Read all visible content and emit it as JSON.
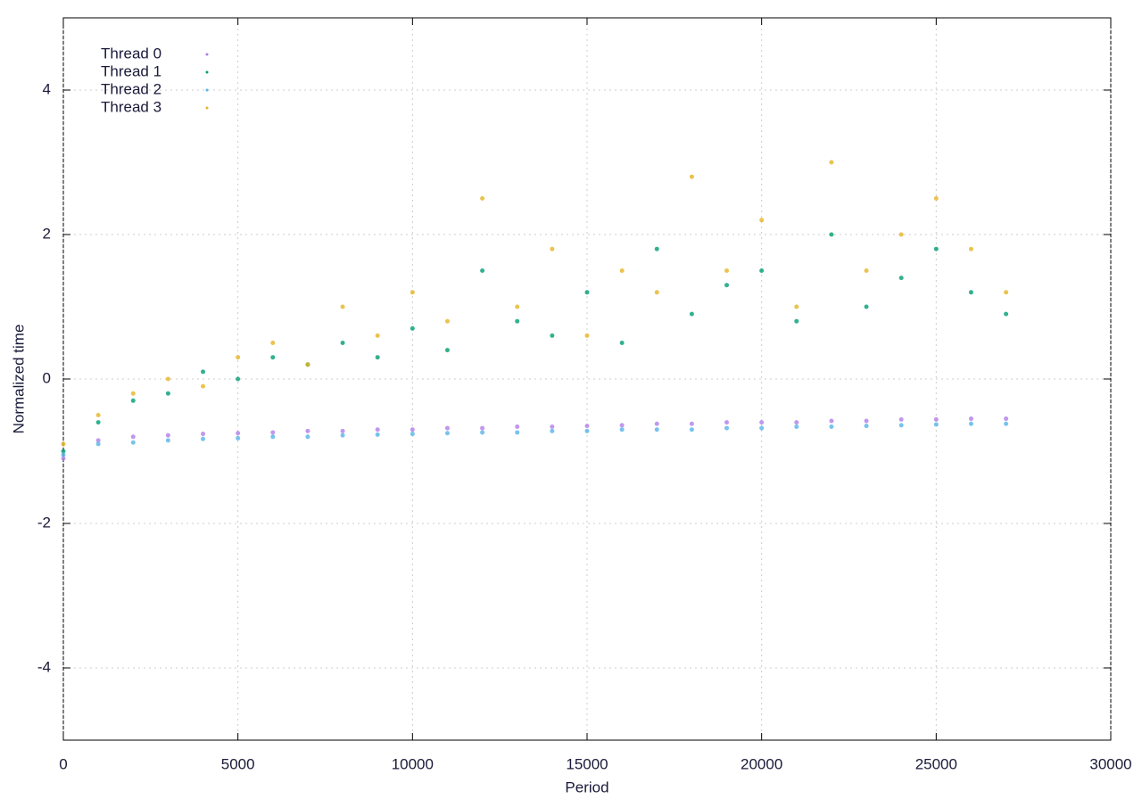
{
  "chart_data": {
    "type": "scatter",
    "x_label": "Period",
    "y_label": "Normalized time",
    "x": [
      0,
      1000,
      2000,
      3000,
      4000,
      5000,
      6000,
      7000,
      8000,
      9000,
      10000,
      11000,
      12000,
      13000,
      14000,
      15000,
      16000,
      17000,
      18000,
      19000,
      20000,
      21000,
      22000,
      23000,
      24000,
      25000,
      26000,
      27000
    ],
    "series": [
      {
        "name": "Thread 0",
        "color": "#b07ee8",
        "values": [
          -1.1,
          -0.85,
          -0.8,
          -0.78,
          -0.76,
          -0.75,
          -0.74,
          -0.72,
          -0.72,
          -0.7,
          -0.7,
          -0.68,
          -0.68,
          -0.66,
          -0.66,
          -0.65,
          -0.64,
          -0.62,
          -0.62,
          -0.6,
          -0.6,
          -0.6,
          -0.58,
          -0.58,
          -0.56,
          -0.56,
          -0.55,
          -0.55
        ]
      },
      {
        "name": "Thread 1",
        "color": "#009e73",
        "values": [
          -1.0,
          -0.6,
          -0.3,
          -0.2,
          0.1,
          0.0,
          0.3,
          0.2,
          0.5,
          0.3,
          0.7,
          0.4,
          1.5,
          0.8,
          0.6,
          1.2,
          0.5,
          1.8,
          0.9,
          1.3,
          1.5,
          0.8,
          2.0,
          1.0,
          1.4,
          1.8,
          1.2,
          0.9
        ]
      },
      {
        "name": "Thread 2",
        "color": "#56b4e9",
        "values": [
          -1.05,
          -0.9,
          -0.88,
          -0.85,
          -0.83,
          -0.82,
          -0.8,
          -0.8,
          -0.78,
          -0.77,
          -0.76,
          -0.75,
          -0.74,
          -0.74,
          -0.72,
          -0.72,
          -0.7,
          -0.7,
          -0.7,
          -0.68,
          -0.68,
          -0.66,
          -0.66,
          -0.65,
          -0.64,
          -0.63,
          -0.62,
          -0.62
        ]
      },
      {
        "name": "Thread 3",
        "color": "#e6b422",
        "values": [
          -0.9,
          -0.5,
          -0.2,
          0.0,
          -0.1,
          0.3,
          0.5,
          0.2,
          1.0,
          0.6,
          1.2,
          0.8,
          2.5,
          1.0,
          1.8,
          0.6,
          1.5,
          1.2,
          2.8,
          1.5,
          2.2,
          1.0,
          3.0,
          1.5,
          2.0,
          2.5,
          1.8,
          1.2
        ]
      }
    ],
    "xlim": [
      0,
      30000
    ],
    "ylim": [
      -5,
      5
    ],
    "xticks": [
      0,
      5000,
      10000,
      15000,
      20000,
      25000,
      30000
    ],
    "yticks": [
      -4,
      -2,
      0,
      2,
      4
    ],
    "grid": true,
    "legend": "upper-left"
  }
}
